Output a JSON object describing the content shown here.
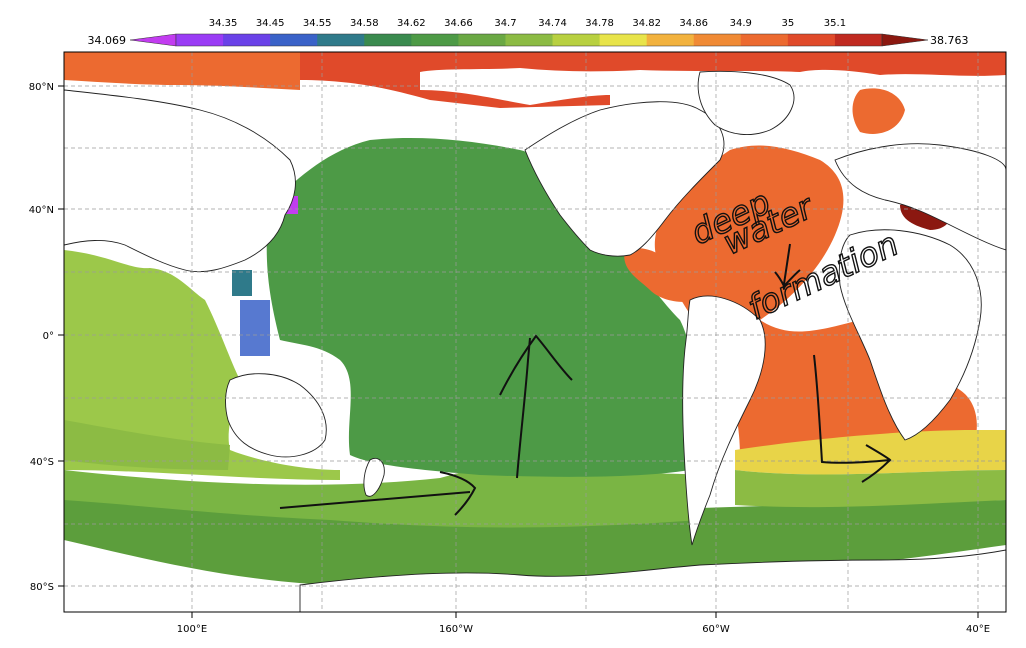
{
  "colorbar": {
    "min_label": "34.069",
    "max_label": "38.763",
    "levels": [
      "34.35",
      "34.45",
      "34.55",
      "34.58",
      "34.62",
      "34.66",
      "34.7",
      "34.74",
      "34.78",
      "34.82",
      "34.86",
      "34.9",
      "35",
      "35.1"
    ],
    "colors": [
      "#c23cf0",
      "#9a3cf5",
      "#6a42e8",
      "#3a62c8",
      "#2f7a8a",
      "#3a8a4e",
      "#4d9a46",
      "#6aa844",
      "#8cbb44",
      "#b8d040",
      "#e8e44a",
      "#f2b23e",
      "#f08a35",
      "#ec6a30",
      "#e04a2a",
      "#c02a20",
      "#8b1810"
    ]
  },
  "map": {
    "lon_labels": [
      "100°E",
      "160°W",
      "60°W",
      "40°E"
    ],
    "lat_labels": [
      "80°N",
      "40°N",
      "0°",
      "40°S",
      "80°S"
    ]
  },
  "annotations": {
    "line1": "deep",
    "line2": "water",
    "line3": "formation"
  }
}
